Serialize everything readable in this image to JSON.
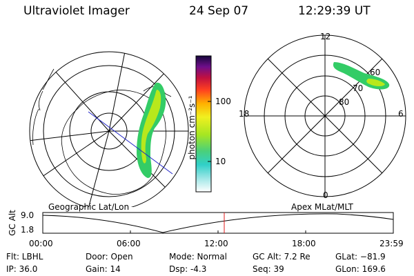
{
  "header": {
    "instrument": "Ultraviolet Imager",
    "date": "24 Sep 07",
    "time": "12:29:39 UT"
  },
  "left_map": {
    "label": "Geographic Lat/Lon"
  },
  "right_map": {
    "label": "Apex  MLat/MLT",
    "mlt_labels": [
      "12",
      "18",
      "6",
      "0"
    ],
    "lat_labels": [
      "60",
      "70",
      "80"
    ]
  },
  "colorbar": {
    "unit_label": "photon cm⁻²s⁻¹",
    "ticks": [
      "100",
      "10"
    ]
  },
  "altitude_plot": {
    "ylabel": "GC Alt",
    "y_ticks": [
      "9.0",
      "1.8"
    ],
    "x_ticks": [
      "00:00",
      "06:00",
      "12:00",
      "18:00",
      "23:59"
    ]
  },
  "info": {
    "filter": "Flt: LBHL",
    "ip": "IP: 36.0",
    "door": "Door: Open",
    "gain": "Gain: 14",
    "mode": "Mode: Normal",
    "dsp": "Dsp:    -4.3",
    "gc_alt": "GC Alt: 7.2 Re",
    "seq": "Seq: 39",
    "glat": "GLat: −81.9",
    "glon": "GLon: 169.6"
  },
  "colors": {
    "background": "#ffffff",
    "lines": "#000000",
    "orbit_line": "#1e22c8",
    "current_time_marker": "#e01818",
    "aurora_outer": "#33cc66",
    "aurora_inner": "#b8e81c"
  }
}
